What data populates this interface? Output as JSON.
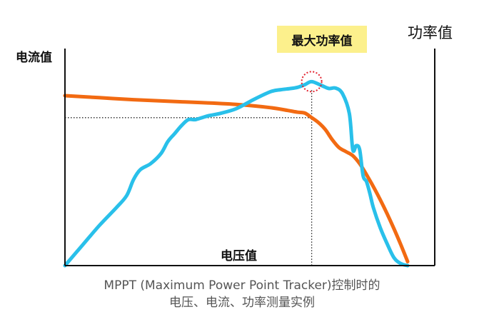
{
  "labels": {
    "y_left": "电流值",
    "y_right": "功率值",
    "x": "电压值",
    "mpp": "最大功率值"
  },
  "caption": {
    "line1": "MPPT (Maximum Power Point Tracker)控制时的",
    "line2": "电压、电流、功率测量实例"
  },
  "colors": {
    "current_curve": "#f26a12",
    "power_curve": "#29c0ea",
    "mpp_marker": "#e3222e",
    "mpp_label_bg": "#fcf08c",
    "axis": "#111111"
  },
  "chart_data": {
    "type": "line",
    "title": "",
    "xlabel": "电压值",
    "ylabel": "电流值",
    "y2label": "功率值",
    "xlim": [
      0,
      100
    ],
    "ylim": [
      0,
      100
    ],
    "grid": false,
    "axis_ticks": false,
    "series": [
      {
        "axis": "left",
        "x": [
          0,
          10,
          20,
          30,
          40,
          50,
          60,
          65,
          68,
          70,
          72,
          74,
          76,
          78,
          80,
          82,
          84,
          86,
          88,
          90,
          92,
          94,
          96,
          98,
          100
        ],
        "values": [
          85,
          84,
          83,
          82.2,
          81.5,
          80.6,
          79,
          77.6,
          76.7,
          76.3,
          74,
          71.5,
          68,
          63,
          59,
          57,
          55,
          51,
          45.5,
          39.5,
          33,
          26,
          18.5,
          10.5,
          2
        ]
      },
      {
        "axis": "right",
        "x": [
          0,
          5,
          10,
          15,
          18,
          20,
          22,
          25,
          28,
          30,
          32,
          34,
          36,
          38,
          40,
          42,
          45,
          50,
          55,
          60,
          63,
          66,
          68,
          70,
          72,
          75,
          77,
          79,
          81,
          83,
          84,
          85,
          86,
          87,
          88,
          89,
          90,
          92,
          94,
          96,
          98,
          100
        ],
        "values": [
          0,
          10,
          20,
          29,
          35,
          43,
          48,
          51,
          56,
          62,
          66,
          70,
          73,
          73,
          74,
          75,
          76,
          78.5,
          83,
          87,
          88,
          88.6,
          89.2,
          90.5,
          92,
          90,
          88.6,
          88.8,
          86,
          76,
          58,
          60,
          58,
          45,
          42,
          36,
          29,
          19,
          11,
          4,
          1,
          0
        ]
      }
    ],
    "annotations": [
      {
        "text": "最大功率值",
        "x": 72,
        "y": 92,
        "axis": "right"
      }
    ],
    "reference_lines": [
      {
        "type": "vertical",
        "x": 72
      },
      {
        "type": "horizontal",
        "y": 74,
        "axis": "left",
        "to_x": 72
      }
    ]
  }
}
